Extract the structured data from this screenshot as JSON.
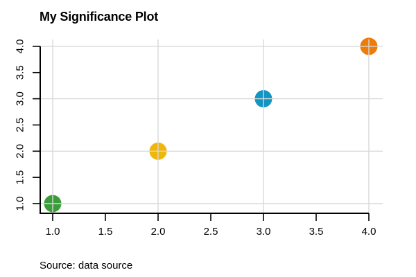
{
  "header": {
    "title": "My Significance Plot"
  },
  "footer": {
    "source_caption": "Source: data source"
  },
  "chart_data": {
    "type": "scatter",
    "title": "My Significance Plot",
    "source_caption": "Source: data source",
    "xlabel": "",
    "ylabel": "",
    "xlim": [
      0.88,
      4.12
    ],
    "ylim": [
      0.88,
      4.12
    ],
    "x_ticks": [
      1.0,
      1.5,
      2.0,
      2.5,
      3.0,
      3.5,
      4.0
    ],
    "x_tick_labels": [
      "1.0",
      "1.5",
      "2.0",
      "2.5",
      "3.0",
      "3.5",
      "4.0"
    ],
    "y_ticks": [
      1.0,
      1.5,
      2.0,
      2.5,
      3.0,
      3.5,
      4.0
    ],
    "y_tick_labels": [
      "1.0",
      "1.5",
      "2.0",
      "2.5",
      "3.0",
      "3.5",
      "4.0"
    ],
    "grid": {
      "show": true,
      "x_values": [
        1,
        2,
        3,
        4
      ],
      "y_values": [
        1,
        2,
        3,
        4
      ],
      "color": "#d9d9d9",
      "drawn_over_points": true
    },
    "legend": {
      "show": false
    },
    "axis_style": "open-left-bottom",
    "axis_color": "#000000",
    "tick_label_color": "#000000",
    "background_color": "#ffffff",
    "series": [
      {
        "name": "points",
        "marker": "filled-circle",
        "points": [
          {
            "x": 1,
            "y": 1,
            "color": "#3a9c3a"
          },
          {
            "x": 2,
            "y": 2,
            "color": "#f0b70a"
          },
          {
            "x": 3,
            "y": 3,
            "color": "#1395c1"
          },
          {
            "x": 4,
            "y": 4,
            "color": "#ee7c0a"
          }
        ]
      }
    ]
  }
}
